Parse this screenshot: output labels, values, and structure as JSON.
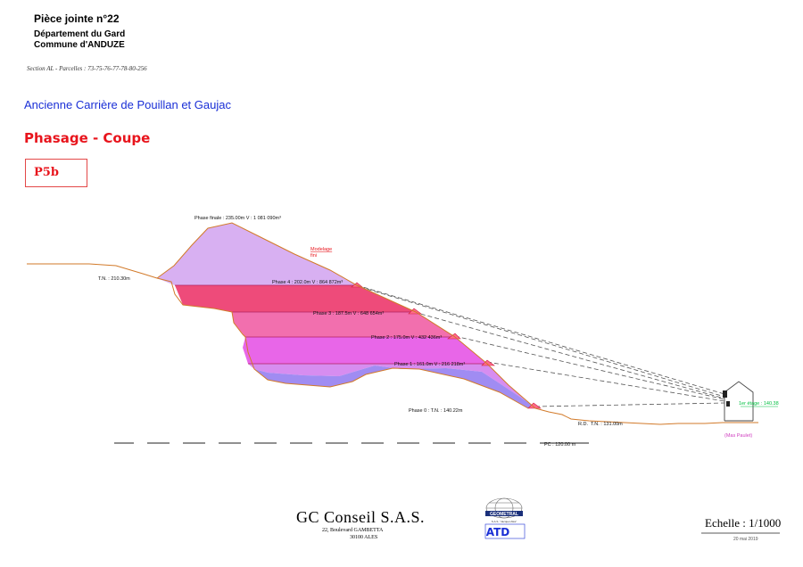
{
  "header": {
    "piece": "Pièce jointe n°22",
    "departement": "Département du Gard",
    "commune": "Commune d'ANDUZE",
    "section": "Section AL - Parcelles : 73-75-76-77-78-80-256",
    "site": "Ancienne Carrière de Pouillan et Gaujac",
    "title": "Phasage - Coupe",
    "code": "P5b"
  },
  "diagram": {
    "phase_finale": "Phase finale : 235.00m  V : 1 081 090m³",
    "modelage_line1": "Modelage",
    "modelage_line2": "fini",
    "tn_left": "T.N. : 210.30m",
    "phase4": "Phase 4 : 202.0m  V : 864 872m³",
    "phase3": "Phase 3 : 187.5m  V : 648 654m³",
    "phase2": "Phase 2 : 175.0m  V : 432 436m³",
    "phase1": "Phase 1 : 161.0m  V : 216 218m³",
    "phase0": "Phase 0 : T.N. : 140.22m",
    "rd": "R.D.",
    "tn_right": "T.N. : 131.00m",
    "rdc": "1er étage : 140.38",
    "mas": "(Mas Paulet)",
    "pc": "PC : 120.00 m",
    "colors": {
      "phase_finale": "#d8b0f2",
      "phase4": "#ee4b7a",
      "phase3": "#f26fae",
      "phase2": "#e866e8",
      "phase1": "#d78df0",
      "phase0": "#a08cf2",
      "contour": "#d27a2a"
    }
  },
  "footer": {
    "company": "GC Conseil  S.A.S.",
    "address1": "22, Boulevard GAMBETTA",
    "address2": "30100  ALES",
    "logo_top": "GEOMETRAL",
    "logo_sub": "S.A.S. \"Jacquet Alès\"",
    "logo_atd": "ATD",
    "echelle": "Echelle : 1/1000",
    "date": "20 mai 2019"
  }
}
